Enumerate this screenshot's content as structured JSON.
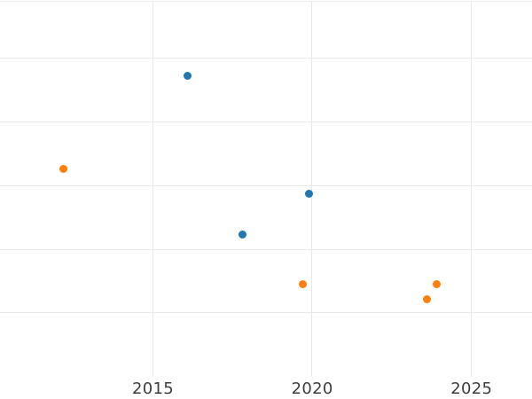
{
  "chart_data": {
    "type": "scatter",
    "title": "",
    "xlabel": "",
    "ylabel": "",
    "x_tick_labels": [
      "2015",
      "2020",
      "2025"
    ],
    "x_tick_values": [
      2015,
      2020,
      2025
    ],
    "xlim": [
      2010.2,
      2026.9
    ],
    "ylim": [
      0,
      5.9
    ],
    "y_gridline_values": [
      1,
      2,
      3,
      4,
      5
    ],
    "y_tick_labels_visible": false,
    "grid": true,
    "legend_visible": false,
    "marker_size_px": 9,
    "series": [
      {
        "name": "blue-series",
        "color": "#1f77b4",
        "points": [
          {
            "x": 2016.1,
            "y": 4.73
          },
          {
            "x": 2017.8,
            "y": 2.23
          },
          {
            "x": 2019.9,
            "y": 2.87
          }
        ]
      },
      {
        "name": "orange-series",
        "color": "#ff7f0e",
        "points": [
          {
            "x": 2012.2,
            "y": 3.27
          },
          {
            "x": 2019.7,
            "y": 1.46
          },
          {
            "x": 2023.6,
            "y": 1.22
          },
          {
            "x": 2023.9,
            "y": 1.46
          }
        ]
      }
    ],
    "colors": {
      "grid": "#e8e8e8",
      "tick_label": "#3d3d3d",
      "background": "#ffffff",
      "blue_marker": "#1f77b4",
      "orange_marker": "#ff7f0e"
    }
  }
}
